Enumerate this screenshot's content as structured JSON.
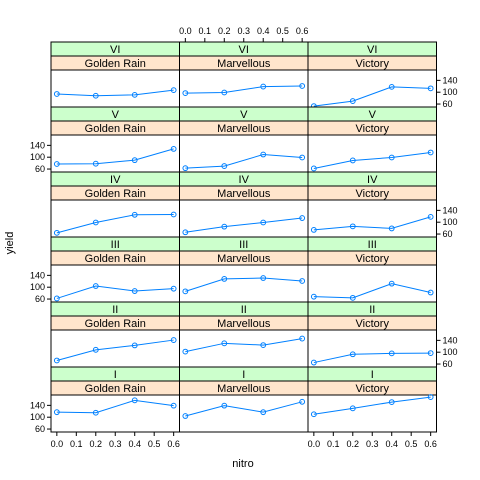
{
  "chart_data": {
    "type": "line",
    "xlabel": "nitro",
    "ylabel": "yield",
    "x": [
      0.0,
      0.2,
      0.4,
      0.6
    ],
    "x_ticks": [
      "0.0",
      "0.1",
      "0.2",
      "0.3",
      "0.4",
      "0.5",
      "0.6"
    ],
    "x_tick_values": [
      0.0,
      0.1,
      0.2,
      0.3,
      0.4,
      0.5,
      0.6
    ],
    "y_ticks": [
      "60",
      "100",
      "140"
    ],
    "y_tick_values": [
      60,
      100,
      140
    ],
    "ylim": [
      50,
      175
    ],
    "xlim": [
      -0.03,
      0.63
    ],
    "grid": false,
    "colors": {
      "strip_block": "#ccffcc",
      "strip_variety": "#ffe5cc",
      "series_line": "#0080ff",
      "frame": "#000000",
      "text": "#000000"
    },
    "rows": [
      {
        "block": "VI",
        "panels": [
          {
            "variety": "Golden Rain",
            "values": [
              94,
              88,
              91,
              107
            ]
          },
          {
            "variety": "Marvellous",
            "values": [
              97,
              99,
              119,
              121
            ]
          },
          {
            "variety": "Victory",
            "values": [
              53,
              70,
              118,
              113
            ]
          }
        ]
      },
      {
        "block": "V",
        "panels": [
          {
            "variety": "Golden Rain",
            "values": [
              77,
              78,
              90,
              128
            ]
          },
          {
            "variety": "Marvellous",
            "values": [
              63,
              70,
              109,
              99
            ]
          },
          {
            "variety": "Victory",
            "values": [
              62,
              89,
              99,
              116
            ]
          }
        ]
      },
      {
        "block": "IV",
        "panels": [
          {
            "variety": "Golden Rain",
            "values": [
              64,
              99,
              125,
              126
            ]
          },
          {
            "variety": "Marvellous",
            "values": [
              66,
              85,
              99,
              114
            ]
          },
          {
            "variety": "Victory",
            "values": [
              74,
              86,
              79,
              118
            ]
          }
        ]
      },
      {
        "block": "III",
        "panels": [
          {
            "variety": "Golden Rain",
            "values": [
              62,
              104,
              87,
              95
            ]
          },
          {
            "variety": "Marvellous",
            "values": [
              86,
              128,
              131,
              121
            ]
          },
          {
            "variety": "Victory",
            "values": [
              68,
              64,
              112,
              82
            ]
          }
        ]
      },
      {
        "block": "II",
        "panels": [
          {
            "variety": "Golden Rain",
            "values": [
              72,
              108,
              123,
              141
            ]
          },
          {
            "variety": "Marvellous",
            "values": [
              102,
              130,
              124,
              146
            ]
          },
          {
            "variety": "Victory",
            "values": [
              65,
              93,
              96,
              97
            ]
          }
        ]
      },
      {
        "block": "I",
        "panels": [
          {
            "variety": "Golden Rain",
            "values": [
              117,
              115,
              157,
              139
            ]
          },
          {
            "variety": "Marvellous",
            "values": [
              104,
              139,
              117,
              152
            ]
          },
          {
            "variety": "Victory",
            "values": [
              110,
              130,
              151,
              168
            ]
          }
        ]
      }
    ]
  }
}
